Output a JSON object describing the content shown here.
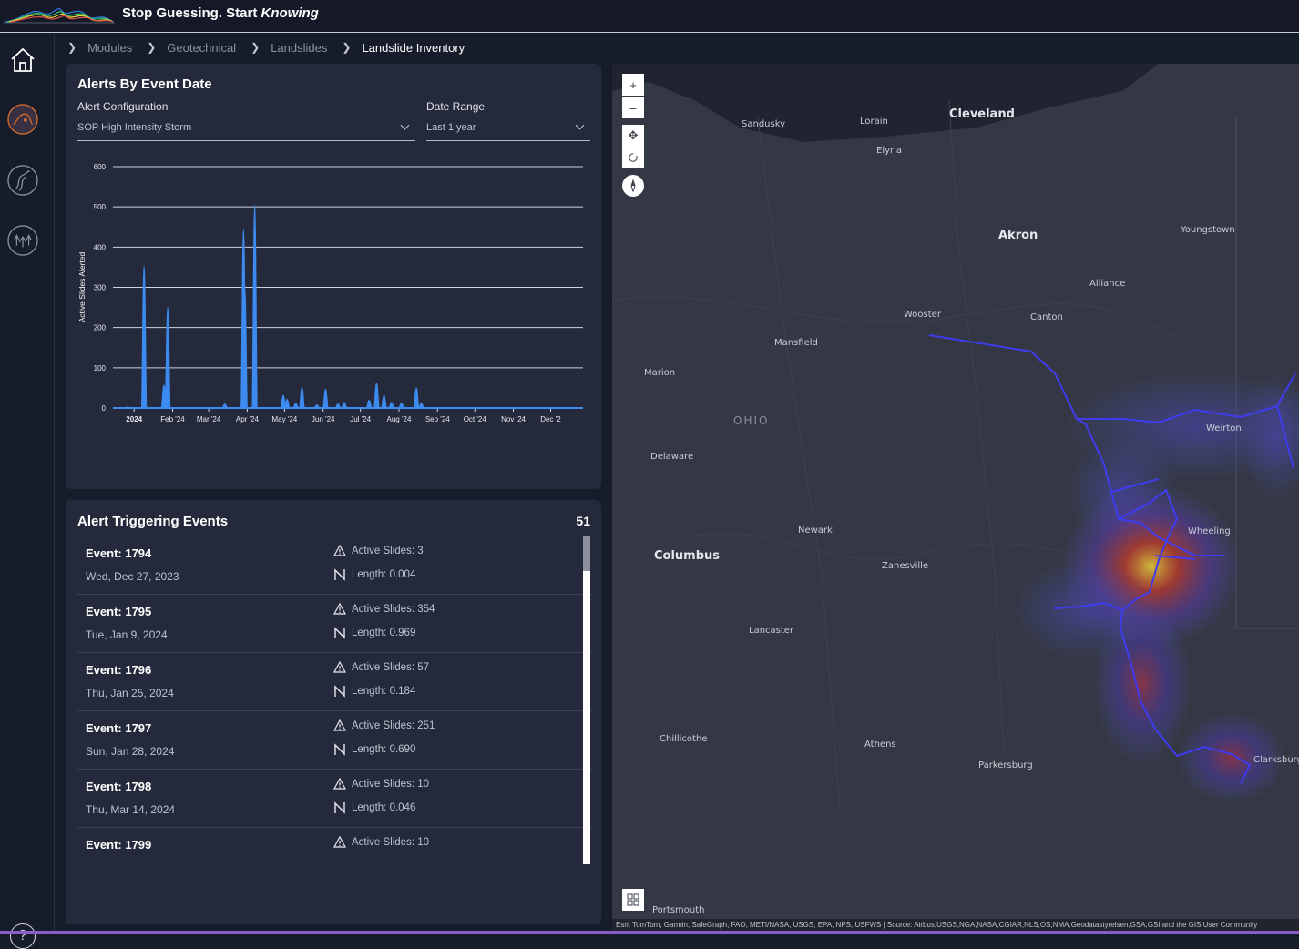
{
  "header": {
    "tagline_main": "Stop Guessing. Start ",
    "tagline_em": "Knowing"
  },
  "breadcrumb": [
    "Modules",
    "Geotechnical",
    "Landslides",
    "Landslide Inventory"
  ],
  "alerts_card": {
    "title": "Alerts By Event Date",
    "alert_config_label": "Alert Configuration",
    "alert_config_value": "SOP High Intensity Storm",
    "date_range_label": "Date Range",
    "date_range_value": "Last 1 year"
  },
  "chart_data": {
    "type": "area",
    "ylabel": "Active Slides Alerted",
    "ylim": [
      0,
      600
    ],
    "yticks": [
      0,
      100,
      200,
      300,
      400,
      500,
      600
    ],
    "xticks": [
      "2024",
      "Feb '24",
      "Mar '24",
      "Apr '24",
      "May '24",
      "Jun '24",
      "Jul '24",
      "Aug '24",
      "Sep '24",
      "Oct '24",
      "Nov '24",
      "Dec '2"
    ],
    "color": "#3d8bf0",
    "grid": true,
    "peaks": [
      {
        "date": "2023-12-27",
        "value": 3
      },
      {
        "date": "2024-01-09",
        "value": 354
      },
      {
        "date": "2024-01-25",
        "value": 57
      },
      {
        "date": "2024-01-28",
        "value": 251
      },
      {
        "date": "2024-03-14",
        "value": 10
      },
      {
        "date": "2024-03-29",
        "value": 445
      },
      {
        "date": "2024-03-30",
        "value": 300
      },
      {
        "date": "2024-04-07",
        "value": 505
      },
      {
        "date": "2024-04-30",
        "value": 32
      },
      {
        "date": "2024-05-03",
        "value": 22
      },
      {
        "date": "2024-05-10",
        "value": 12
      },
      {
        "date": "2024-05-15",
        "value": 52
      },
      {
        "date": "2024-05-27",
        "value": 8
      },
      {
        "date": "2024-06-03",
        "value": 47
      },
      {
        "date": "2024-06-13",
        "value": 10
      },
      {
        "date": "2024-06-18",
        "value": 14
      },
      {
        "date": "2024-07-08",
        "value": 20
      },
      {
        "date": "2024-07-14",
        "value": 62
      },
      {
        "date": "2024-07-20",
        "value": 32
      },
      {
        "date": "2024-07-26",
        "value": 14
      },
      {
        "date": "2024-08-03",
        "value": 12
      },
      {
        "date": "2024-08-15",
        "value": 50
      },
      {
        "date": "2024-08-19",
        "value": 12
      }
    ]
  },
  "events_card": {
    "title": "Alert Triggering Events",
    "count": "51",
    "events": [
      {
        "title": "Event: 1794",
        "date": "Wed, Dec 27, 2023",
        "slides": "Active Slides: 3",
        "length": "Length: 0.004"
      },
      {
        "title": "Event: 1795",
        "date": "Tue, Jan 9, 2024",
        "slides": "Active Slides: 354",
        "length": "Length: 0.969"
      },
      {
        "title": "Event: 1796",
        "date": "Thu, Jan 25, 2024",
        "slides": "Active Slides: 57",
        "length": "Length: 0.184"
      },
      {
        "title": "Event: 1797",
        "date": "Sun, Jan 28, 2024",
        "slides": "Active Slides: 251",
        "length": "Length: 0.690"
      },
      {
        "title": "Event: 1798",
        "date": "Thu, Mar 14, 2024",
        "slides": "Active Slides: 10",
        "length": "Length: 0.046"
      },
      {
        "title": "Event: 1799",
        "date": "",
        "slides": "Active Slides: 10",
        "length": ""
      }
    ]
  },
  "map": {
    "zoom_in": "+",
    "zoom_out": "–",
    "labels": [
      {
        "text": "Cleveland",
        "size": "big"
      },
      {
        "text": "Sandusky"
      },
      {
        "text": "Lorain"
      },
      {
        "text": "Elyria"
      },
      {
        "text": "Akron",
        "size": "big"
      },
      {
        "text": "Youngstown"
      },
      {
        "text": "Alliance"
      },
      {
        "text": "Canton"
      },
      {
        "text": "Wooster"
      },
      {
        "text": "Mansfield"
      },
      {
        "text": "Marion"
      },
      {
        "text": "OHIO",
        "size": "state"
      },
      {
        "text": "Delaware"
      },
      {
        "text": "Weirton"
      },
      {
        "text": "Wheeling"
      },
      {
        "text": "Newark"
      },
      {
        "text": "Zanesville"
      },
      {
        "text": "Columbus",
        "size": "big"
      },
      {
        "text": "Lancaster"
      },
      {
        "text": "Chillicothe"
      },
      {
        "text": "Athens"
      },
      {
        "text": "Parkersburg"
      },
      {
        "text": "Clarksburg"
      },
      {
        "text": "Portsmouth"
      }
    ],
    "attribution": "Esri, TomTom, Garmin, SafeGraph, FAO, METI/NASA, USGS, EPA, NPS, USFWS | Source: Airbus,USGS,NGA,NASA,CGIAR,NLS,OS,NMA,Geodatastyrelsen,GSA,GSI and the GIS User Community"
  }
}
